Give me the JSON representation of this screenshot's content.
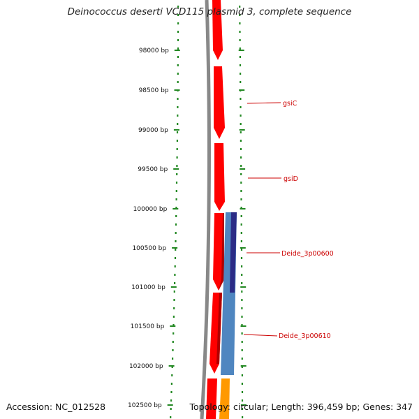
{
  "title": "Deinococcus deserti VCD115 plasmid 3, complete sequence",
  "footer": {
    "accession": "Accession: NC_012528",
    "stats": "Topology: circular; Length: 396,459 bp; Genes: 347"
  },
  "colors": {
    "backbone": "#888888",
    "cds": "#ff0000",
    "cds_dark": "#b00000",
    "blast_light": "#4f86c0",
    "blast_dark": "#2b2b86",
    "orange": "#ff9900",
    "ruler": "#228822",
    "gene_label": "#cc0000"
  },
  "ticks": [
    {
      "label": "98000 bp"
    },
    {
      "label": "98500 bp"
    },
    {
      "label": "99000 bp"
    },
    {
      "label": "99500 bp"
    },
    {
      "label": "100000 bp"
    },
    {
      "label": "100500 bp"
    },
    {
      "label": "101000 bp"
    },
    {
      "label": "101500 bp"
    },
    {
      "label": "102000 bp"
    },
    {
      "label": "102500 bp"
    }
  ],
  "genes": [
    {
      "label": "gsiC"
    },
    {
      "label": "gsiD"
    },
    {
      "label": "Deide_3p00600"
    },
    {
      "label": "Deide_3p00610"
    }
  ]
}
